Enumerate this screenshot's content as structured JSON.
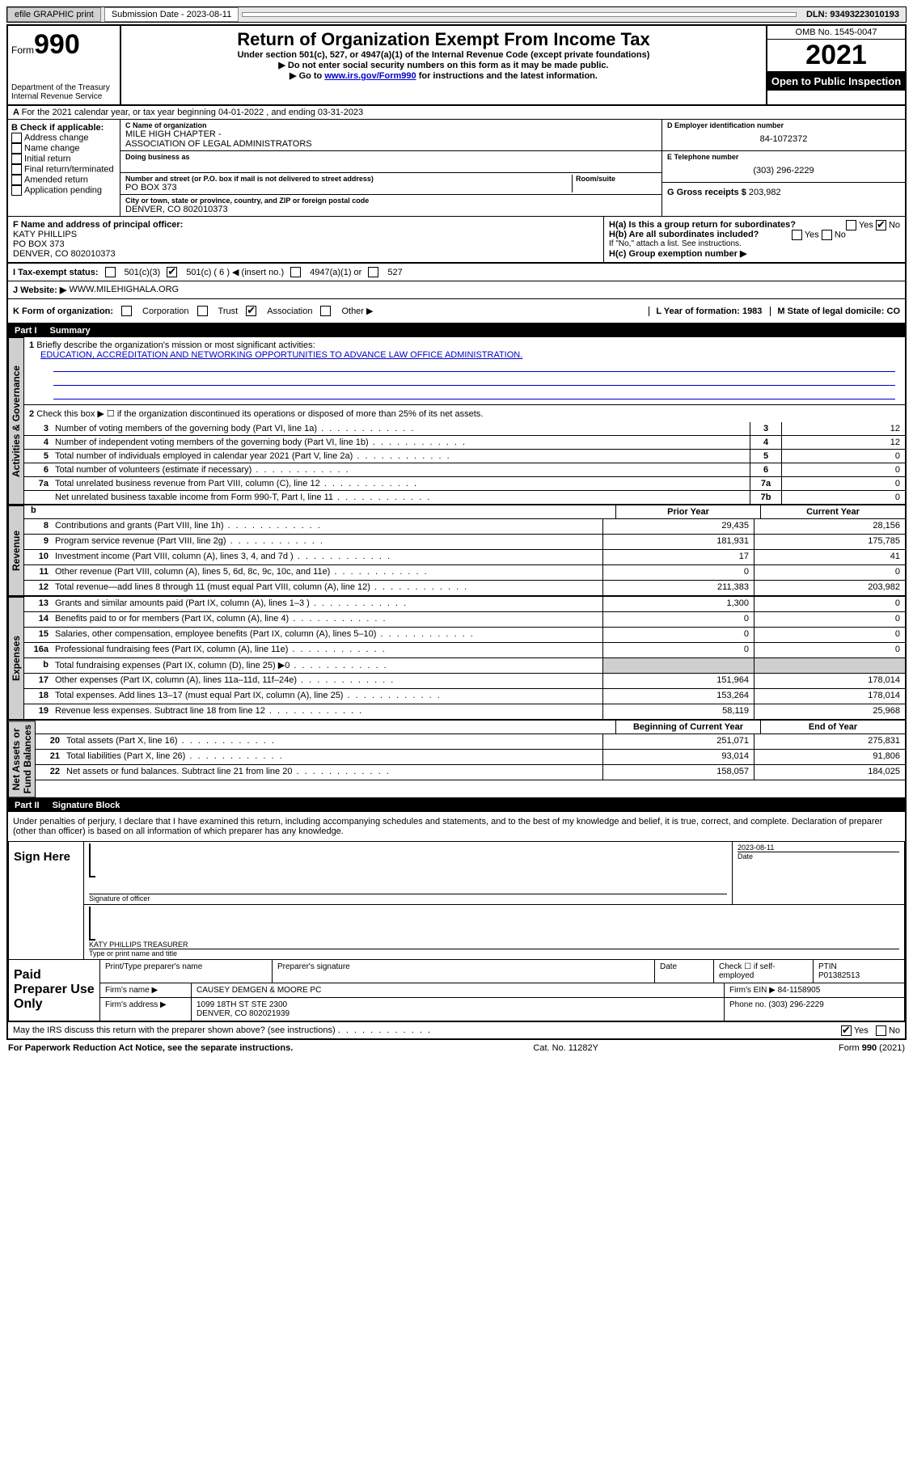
{
  "topbar": {
    "efile": "efile GRAPHIC print",
    "sub_label": "Submission Date - 2023-08-11",
    "dln": "DLN: 93493223010193"
  },
  "header": {
    "form": "Form",
    "formno": "990",
    "dept": "Department of the Treasury\nInternal Revenue Service",
    "title": "Return of Organization Exempt From Income Tax",
    "sub1": "Under section 501(c), 527, or 4947(a)(1) of the Internal Revenue Code (except private foundations)",
    "sub2": "Do not enter social security numbers on this form as it may be made public.",
    "sub3_pre": "Go to ",
    "sub3_link": "www.irs.gov/Form990",
    "sub3_post": " for instructions and the latest information.",
    "omb": "OMB No. 1545-0047",
    "year": "2021",
    "opi": "Open to Public Inspection"
  },
  "line_a": "For the 2021 calendar year, or tax year beginning 04-01-2022    , and ending 03-31-2023",
  "box_b": {
    "title": "B Check if applicable:",
    "items": [
      "Address change",
      "Name change",
      "Initial return",
      "Final return/terminated",
      "Amended return",
      "Application pending"
    ]
  },
  "box_c": {
    "label_name": "C Name of organization",
    "name": "MILE HIGH CHAPTER -\nASSOCIATION OF LEGAL ADMINISTRATORS",
    "dba_label": "Doing business as",
    "addr_label": "Number and street (or P.O. box if mail is not delivered to street address)",
    "room_label": "Room/suite",
    "addr": "PO BOX 373",
    "city_label": "City or town, state or province, country, and ZIP or foreign postal code",
    "city": "DENVER, CO  802010373"
  },
  "box_d": {
    "label": "D Employer identification number",
    "val": "84-1072372"
  },
  "box_e": {
    "label": "E Telephone number",
    "val": "(303) 296-2229"
  },
  "box_g": {
    "label": "G Gross receipts $",
    "val": "203,982"
  },
  "box_f": {
    "label": "F Name and address of principal officer:",
    "name": "KATY PHILLIPS",
    "addr1": "PO BOX 373",
    "addr2": "DENVER, CO  802010373"
  },
  "box_h": {
    "a": "H(a)  Is this a group return for subordinates?",
    "b": "H(b)  Are all subordinates included?",
    "b_note": "If \"No,\" attach a list. See instructions.",
    "c": "H(c)  Group exemption number ▶",
    "yes": "Yes",
    "no": "No"
  },
  "tax_exempt": {
    "label": "I   Tax-exempt status:",
    "o1": "501(c)(3)",
    "o2": "501(c) ( 6 ) ◀ (insert no.)",
    "o3": "4947(a)(1) or",
    "o4": "527"
  },
  "website": {
    "label": "J   Website: ▶",
    "val": "WWW.MILEHIGHALA.ORG"
  },
  "k_row": {
    "label": "K Form of organization:",
    "opts": [
      "Corporation",
      "Trust",
      "Association",
      "Other ▶"
    ],
    "l": "L Year of formation: 1983",
    "m": "M State of legal domicile: CO"
  },
  "part1": {
    "label": "Part I",
    "title": "Summary"
  },
  "tabs": {
    "ag": "Activities & Governance",
    "rev": "Revenue",
    "exp": "Expenses",
    "na": "Net Assets or\nFund Balances"
  },
  "summary": {
    "q1_label": "Briefly describe the organization's mission or most significant activities:",
    "q1_val": "EDUCATION, ACCREDITATION AND NETWORKING OPPORTUNITIES TO ADVANCE LAW OFFICE ADMINISTRATION.",
    "q2": "Check this box ▶ ☐  if the organization discontinued its operations or disposed of more than 25% of its net assets.",
    "rows_gov": [
      {
        "n": "3",
        "t": "Number of voting members of the governing body (Part VI, line 1a)",
        "cn": "3",
        "v": "12"
      },
      {
        "n": "4",
        "t": "Number of independent voting members of the governing body (Part VI, line 1b)",
        "cn": "4",
        "v": "12"
      },
      {
        "n": "5",
        "t": "Total number of individuals employed in calendar year 2021 (Part V, line 2a)",
        "cn": "5",
        "v": "0"
      },
      {
        "n": "6",
        "t": "Total number of volunteers (estimate if necessary)",
        "cn": "6",
        "v": "0"
      },
      {
        "n": "7a",
        "t": "Total unrelated business revenue from Part VIII, column (C), line 12",
        "cn": "7a",
        "v": "0"
      },
      {
        "n": "",
        "t": "Net unrelated business taxable income from Form 990-T, Part I, line 11",
        "cn": "7b",
        "v": "0"
      }
    ],
    "col_hdr": {
      "b": "b",
      "py": "Prior Year",
      "cy": "Current Year",
      "bcy": "Beginning of Current Year",
      "eoy": "End of Year"
    },
    "rows_rev": [
      {
        "n": "8",
        "t": "Contributions and grants (Part VIII, line 1h)",
        "py": "29,435",
        "cy": "28,156"
      },
      {
        "n": "9",
        "t": "Program service revenue (Part VIII, line 2g)",
        "py": "181,931",
        "cy": "175,785"
      },
      {
        "n": "10",
        "t": "Investment income (Part VIII, column (A), lines 3, 4, and 7d )",
        "py": "17",
        "cy": "41"
      },
      {
        "n": "11",
        "t": "Other revenue (Part VIII, column (A), lines 5, 6d, 8c, 9c, 10c, and 11e)",
        "py": "0",
        "cy": "0"
      },
      {
        "n": "12",
        "t": "Total revenue—add lines 8 through 11 (must equal Part VIII, column (A), line 12)",
        "py": "211,383",
        "cy": "203,982"
      }
    ],
    "rows_exp": [
      {
        "n": "13",
        "t": "Grants and similar amounts paid (Part IX, column (A), lines 1–3 )",
        "py": "1,300",
        "cy": "0"
      },
      {
        "n": "14",
        "t": "Benefits paid to or for members (Part IX, column (A), line 4)",
        "py": "0",
        "cy": "0"
      },
      {
        "n": "15",
        "t": "Salaries, other compensation, employee benefits (Part IX, column (A), lines 5–10)",
        "py": "0",
        "cy": "0"
      },
      {
        "n": "16a",
        "t": "Professional fundraising fees (Part IX, column (A), line 11e)",
        "py": "0",
        "cy": "0"
      },
      {
        "n": "b",
        "t": "Total fundraising expenses (Part IX, column (D), line 25) ▶0",
        "py": "",
        "cy": "",
        "shade": true
      },
      {
        "n": "17",
        "t": "Other expenses (Part IX, column (A), lines 11a–11d, 11f–24e)",
        "py": "151,964",
        "cy": "178,014"
      },
      {
        "n": "18",
        "t": "Total expenses. Add lines 13–17 (must equal Part IX, column (A), line 25)",
        "py": "153,264",
        "cy": "178,014"
      },
      {
        "n": "19",
        "t": "Revenue less expenses. Subtract line 18 from line 12",
        "py": "58,119",
        "cy": "25,968"
      }
    ],
    "rows_na": [
      {
        "n": "20",
        "t": "Total assets (Part X, line 16)",
        "py": "251,071",
        "cy": "275,831"
      },
      {
        "n": "21",
        "t": "Total liabilities (Part X, line 26)",
        "py": "93,014",
        "cy": "91,806"
      },
      {
        "n": "22",
        "t": "Net assets or fund balances. Subtract line 21 from line 20",
        "py": "158,057",
        "cy": "184,025"
      }
    ]
  },
  "part2": {
    "label": "Part II",
    "title": "Signature Block"
  },
  "sig": {
    "perjury": "Under penalties of perjury, I declare that I have examined this return, including accompanying schedules and statements, and to the best of my knowledge and belief, it is true, correct, and complete. Declaration of preparer (other than officer) is based on all information of which preparer has any knowledge.",
    "sign_here": "Sign Here",
    "sig_officer": "Signature of officer",
    "date": "Date",
    "date_val": "2023-08-11",
    "name_title": "KATY PHILLIPS  TREASURER",
    "type_name": "Type or print name and title",
    "paid": "Paid Preparer Use Only",
    "pt_name": "Print/Type preparer's name",
    "pp_sig": "Preparer's signature",
    "pp_date": "Date",
    "check_if": "Check ☐ if self-employed",
    "ptin_l": "PTIN",
    "ptin": "P01382513",
    "firm_name_l": "Firm's name    ▶",
    "firm_name": "CAUSEY DEMGEN & MOORE PC",
    "firm_ein_l": "Firm's EIN ▶",
    "firm_ein": "84-1158905",
    "firm_addr_l": "Firm's address ▶",
    "firm_addr": "1099 18TH ST STE 2300\nDENVER, CO  802021939",
    "phone_l": "Phone no.",
    "phone": "(303) 296-2229",
    "may_irs": "May the IRS discuss this return with the preparer shown above? (see instructions)",
    "yes": "Yes",
    "no": "No"
  },
  "footer": {
    "pra": "For Paperwork Reduction Act Notice, see the separate instructions.",
    "cat": "Cat. No. 11282Y",
    "form": "Form 990 (2021)"
  }
}
